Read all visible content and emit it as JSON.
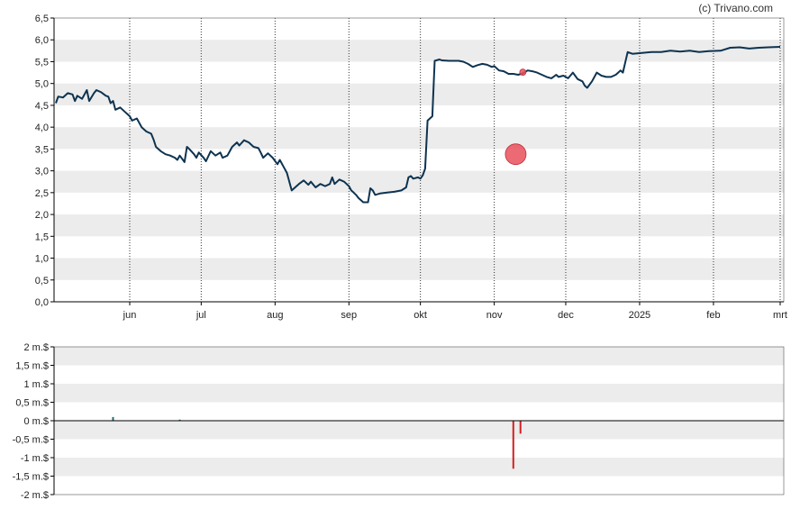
{
  "credit": "(c) Trivano.com",
  "colors": {
    "line": "#0d3350",
    "band": "#ececec",
    "marker": "#e8505b",
    "positive_bar": "#1f6f6f",
    "negative_bar": "#d42020",
    "axis": "#000000"
  },
  "chart_data": [
    {
      "type": "line",
      "grid": "dotted vertical lines at month ticks, alternating horizontal bands",
      "ylim": [
        0,
        6.5
      ],
      "y_tick_labels": [
        "0,0",
        "0,5",
        "1,0",
        "1,5",
        "2,0",
        "2,5",
        "3,0",
        "3,5",
        "4,0",
        "4,5",
        "5,0",
        "5,5",
        "6,0",
        "6,5"
      ],
      "x_tick_labels": [
        "jun",
        "jul",
        "aug",
        "sep",
        "okt",
        "nov",
        "dec",
        "2025",
        "feb",
        "mrt"
      ],
      "x_range": [
        "2024-05-01",
        "2025-03-01"
      ],
      "month_ticks": [
        "2024-06-01",
        "2024-07-01",
        "2024-08-01",
        "2024-09-01",
        "2024-10-01",
        "2024-11-01",
        "2024-12-01",
        "2025-01-01",
        "2025-02-01",
        "2025-03-01"
      ],
      "series": [
        {
          "points": [
            [
              "2024-05-01",
              4.55
            ],
            [
              "2024-05-02",
              4.7
            ],
            [
              "2024-05-04",
              4.68
            ],
            [
              "2024-05-06",
              4.78
            ],
            [
              "2024-05-08",
              4.75
            ],
            [
              "2024-05-09",
              4.6
            ],
            [
              "2024-05-10",
              4.72
            ],
            [
              "2024-05-12",
              4.65
            ],
            [
              "2024-05-14",
              4.85
            ],
            [
              "2024-05-15",
              4.6
            ],
            [
              "2024-05-17",
              4.78
            ],
            [
              "2024-05-18",
              4.85
            ],
            [
              "2024-05-20",
              4.8
            ],
            [
              "2024-05-22",
              4.72
            ],
            [
              "2024-05-23",
              4.7
            ],
            [
              "2024-05-24",
              4.55
            ],
            [
              "2024-05-25",
              4.6
            ],
            [
              "2024-05-26",
              4.4
            ],
            [
              "2024-05-28",
              4.45
            ],
            [
              "2024-05-30",
              4.35
            ],
            [
              "2024-06-01",
              4.25
            ],
            [
              "2024-06-02",
              4.15
            ],
            [
              "2024-06-04",
              4.2
            ],
            [
              "2024-06-06",
              4.0
            ],
            [
              "2024-06-08",
              3.9
            ],
            [
              "2024-06-10",
              3.85
            ],
            [
              "2024-06-11",
              3.72
            ],
            [
              "2024-06-12",
              3.55
            ],
            [
              "2024-06-14",
              3.45
            ],
            [
              "2024-06-16",
              3.38
            ],
            [
              "2024-06-18",
              3.35
            ],
            [
              "2024-06-20",
              3.3
            ],
            [
              "2024-06-21",
              3.25
            ],
            [
              "2024-06-22",
              3.35
            ],
            [
              "2024-06-24",
              3.2
            ],
            [
              "2024-06-25",
              3.55
            ],
            [
              "2024-06-26",
              3.5
            ],
            [
              "2024-06-28",
              3.38
            ],
            [
              "2024-06-29",
              3.3
            ],
            [
              "2024-06-30",
              3.42
            ],
            [
              "2024-07-02",
              3.3
            ],
            [
              "2024-07-03",
              3.22
            ],
            [
              "2024-07-05",
              3.45
            ],
            [
              "2024-07-07",
              3.35
            ],
            [
              "2024-07-09",
              3.42
            ],
            [
              "2024-07-10",
              3.3
            ],
            [
              "2024-07-12",
              3.35
            ],
            [
              "2024-07-14",
              3.55
            ],
            [
              "2024-07-16",
              3.65
            ],
            [
              "2024-07-17",
              3.58
            ],
            [
              "2024-07-19",
              3.7
            ],
            [
              "2024-07-21",
              3.65
            ],
            [
              "2024-07-23",
              3.55
            ],
            [
              "2024-07-25",
              3.52
            ],
            [
              "2024-07-26",
              3.42
            ],
            [
              "2024-07-27",
              3.3
            ],
            [
              "2024-07-29",
              3.4
            ],
            [
              "2024-07-31",
              3.3
            ],
            [
              "2024-08-02",
              3.15
            ],
            [
              "2024-08-03",
              3.25
            ],
            [
              "2024-08-05",
              3.05
            ],
            [
              "2024-08-06",
              2.95
            ],
            [
              "2024-08-08",
              2.55
            ],
            [
              "2024-08-09",
              2.6
            ],
            [
              "2024-08-11",
              2.7
            ],
            [
              "2024-08-13",
              2.78
            ],
            [
              "2024-08-15",
              2.68
            ],
            [
              "2024-08-16",
              2.75
            ],
            [
              "2024-08-18",
              2.62
            ],
            [
              "2024-08-20",
              2.7
            ],
            [
              "2024-08-22",
              2.65
            ],
            [
              "2024-08-24",
              2.7
            ],
            [
              "2024-08-25",
              2.85
            ],
            [
              "2024-08-26",
              2.7
            ],
            [
              "2024-08-28",
              2.8
            ],
            [
              "2024-08-30",
              2.75
            ],
            [
              "2024-09-01",
              2.65
            ],
            [
              "2024-09-02",
              2.55
            ],
            [
              "2024-09-03",
              2.5
            ],
            [
              "2024-09-04",
              2.45
            ],
            [
              "2024-09-05",
              2.38
            ],
            [
              "2024-09-07",
              2.28
            ],
            [
              "2024-09-09",
              2.28
            ],
            [
              "2024-09-10",
              2.6
            ],
            [
              "2024-09-11",
              2.55
            ],
            [
              "2024-09-12",
              2.45
            ],
            [
              "2024-09-14",
              2.48
            ],
            [
              "2024-09-17",
              2.5
            ],
            [
              "2024-09-20",
              2.52
            ],
            [
              "2024-09-23",
              2.55
            ],
            [
              "2024-09-25",
              2.62
            ],
            [
              "2024-09-26",
              2.85
            ],
            [
              "2024-09-27",
              2.88
            ],
            [
              "2024-09-28",
              2.82
            ],
            [
              "2024-09-30",
              2.85
            ],
            [
              "2024-10-01",
              2.82
            ],
            [
              "2024-10-02",
              2.9
            ],
            [
              "2024-10-03",
              3.05
            ],
            [
              "2024-10-04",
              4.15
            ],
            [
              "2024-10-05",
              4.2
            ],
            [
              "2024-10-06",
              4.25
            ],
            [
              "2024-10-07",
              5.52
            ],
            [
              "2024-10-09",
              5.55
            ],
            [
              "2024-10-10",
              5.53
            ],
            [
              "2024-10-13",
              5.52
            ],
            [
              "2024-10-17",
              5.52
            ],
            [
              "2024-10-19",
              5.5
            ],
            [
              "2024-10-21",
              5.45
            ],
            [
              "2024-10-23",
              5.38
            ],
            [
              "2024-10-25",
              5.42
            ],
            [
              "2024-10-27",
              5.45
            ],
            [
              "2024-10-29",
              5.43
            ],
            [
              "2024-10-31",
              5.38
            ],
            [
              "2024-11-01",
              5.4
            ],
            [
              "2024-11-03",
              5.3
            ],
            [
              "2024-11-05",
              5.28
            ],
            [
              "2024-11-07",
              5.22
            ],
            [
              "2024-11-09",
              5.22
            ],
            [
              "2024-11-11",
              5.2
            ],
            [
              "2024-11-13",
              5.23
            ],
            [
              "2024-11-15",
              5.3
            ],
            [
              "2024-11-17",
              5.28
            ],
            [
              "2024-11-19",
              5.25
            ],
            [
              "2024-11-21",
              5.2
            ],
            [
              "2024-11-23",
              5.15
            ],
            [
              "2024-11-25",
              5.12
            ],
            [
              "2024-11-27",
              5.2
            ],
            [
              "2024-11-28",
              5.15
            ],
            [
              "2024-11-30",
              5.18
            ],
            [
              "2024-12-02",
              5.12
            ],
            [
              "2024-12-04",
              5.25
            ],
            [
              "2024-12-06",
              5.1
            ],
            [
              "2024-12-08",
              5.05
            ],
            [
              "2024-12-09",
              4.95
            ],
            [
              "2024-12-10",
              4.9
            ],
            [
              "2024-12-12",
              5.05
            ],
            [
              "2024-12-14",
              5.25
            ],
            [
              "2024-12-16",
              5.18
            ],
            [
              "2024-12-18",
              5.15
            ],
            [
              "2024-12-20",
              5.15
            ],
            [
              "2024-12-22",
              5.2
            ],
            [
              "2024-12-23",
              5.25
            ],
            [
              "2024-12-24",
              5.3
            ],
            [
              "2024-12-25",
              5.25
            ],
            [
              "2024-12-27",
              5.72
            ],
            [
              "2024-12-29",
              5.68
            ],
            [
              "2025-01-02",
              5.7
            ],
            [
              "2025-01-06",
              5.72
            ],
            [
              "2025-01-10",
              5.72
            ],
            [
              "2025-01-14",
              5.75
            ],
            [
              "2025-01-18",
              5.73
            ],
            [
              "2025-01-22",
              5.75
            ],
            [
              "2025-01-26",
              5.72
            ],
            [
              "2025-01-30",
              5.74
            ],
            [
              "2025-02-04",
              5.75
            ],
            [
              "2025-02-08",
              5.82
            ],
            [
              "2025-02-12",
              5.83
            ],
            [
              "2025-02-16",
              5.8
            ],
            [
              "2025-02-20",
              5.82
            ],
            [
              "2025-02-24",
              5.83
            ],
            [
              "2025-03-01",
              5.84
            ]
          ]
        }
      ],
      "markers": [
        {
          "date": "2024-11-10",
          "value": 3.38,
          "size": "large"
        },
        {
          "date": "2024-11-13",
          "value": 5.26,
          "size": "small"
        }
      ]
    },
    {
      "type": "bar",
      "grid": "alternating horizontal bands",
      "ylim": [
        -2,
        2
      ],
      "y_tick_labels": [
        "-2 m.$",
        "-1,5 m.$",
        "-1 m.$",
        "-0,5 m.$",
        "0 m.$",
        "0,5 m.$",
        "1 m.$",
        "1,5 m.$",
        "2 m.$"
      ],
      "x_range": [
        "2024-05-01",
        "2025-03-01"
      ],
      "bars": [
        {
          "date": "2024-05-25",
          "value": 0.1
        },
        {
          "date": "2024-06-22",
          "value": 0.03
        },
        {
          "date": "2024-11-09",
          "value": -1.3
        },
        {
          "date": "2024-11-12",
          "value": -0.35
        }
      ]
    }
  ]
}
